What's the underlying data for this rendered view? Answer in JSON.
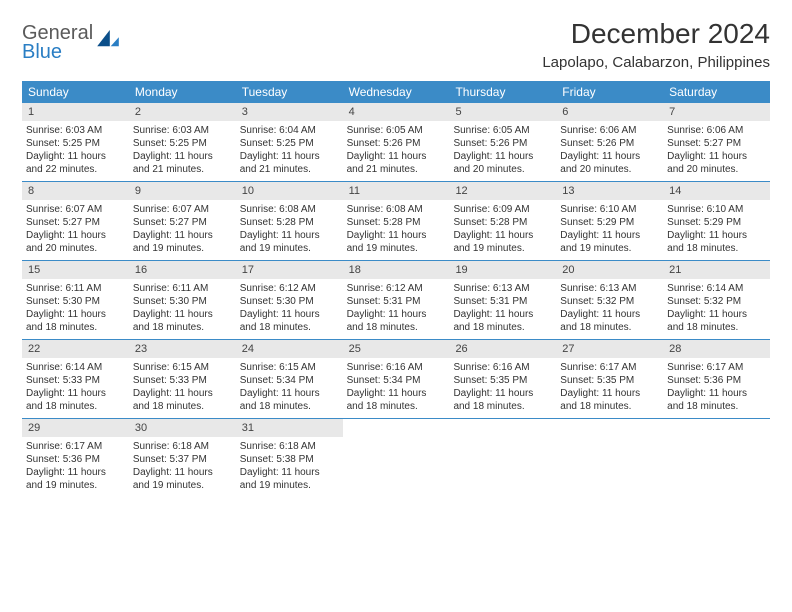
{
  "brand": {
    "line1": "General",
    "line2": "Blue"
  },
  "title": "December 2024",
  "location": "Lapolapo, Calabarzon, Philippines",
  "weekdays": [
    "Sunday",
    "Monday",
    "Tuesday",
    "Wednesday",
    "Thursday",
    "Friday",
    "Saturday"
  ],
  "colors": {
    "header_bg": "#3b8bc7",
    "header_text": "#ffffff",
    "daynum_bg": "#e8e8e8",
    "week_border": "#3b8bc7",
    "brand_gray": "#5a5a5a",
    "brand_blue": "#2a7ec4"
  },
  "weeks": [
    [
      {
        "n": "1",
        "sr": "Sunrise: 6:03 AM",
        "ss": "Sunset: 5:25 PM",
        "d1": "Daylight: 11 hours",
        "d2": "and 22 minutes."
      },
      {
        "n": "2",
        "sr": "Sunrise: 6:03 AM",
        "ss": "Sunset: 5:25 PM",
        "d1": "Daylight: 11 hours",
        "d2": "and 21 minutes."
      },
      {
        "n": "3",
        "sr": "Sunrise: 6:04 AM",
        "ss": "Sunset: 5:25 PM",
        "d1": "Daylight: 11 hours",
        "d2": "and 21 minutes."
      },
      {
        "n": "4",
        "sr": "Sunrise: 6:05 AM",
        "ss": "Sunset: 5:26 PM",
        "d1": "Daylight: 11 hours",
        "d2": "and 21 minutes."
      },
      {
        "n": "5",
        "sr": "Sunrise: 6:05 AM",
        "ss": "Sunset: 5:26 PM",
        "d1": "Daylight: 11 hours",
        "d2": "and 20 minutes."
      },
      {
        "n": "6",
        "sr": "Sunrise: 6:06 AM",
        "ss": "Sunset: 5:26 PM",
        "d1": "Daylight: 11 hours",
        "d2": "and 20 minutes."
      },
      {
        "n": "7",
        "sr": "Sunrise: 6:06 AM",
        "ss": "Sunset: 5:27 PM",
        "d1": "Daylight: 11 hours",
        "d2": "and 20 minutes."
      }
    ],
    [
      {
        "n": "8",
        "sr": "Sunrise: 6:07 AM",
        "ss": "Sunset: 5:27 PM",
        "d1": "Daylight: 11 hours",
        "d2": "and 20 minutes."
      },
      {
        "n": "9",
        "sr": "Sunrise: 6:07 AM",
        "ss": "Sunset: 5:27 PM",
        "d1": "Daylight: 11 hours",
        "d2": "and 19 minutes."
      },
      {
        "n": "10",
        "sr": "Sunrise: 6:08 AM",
        "ss": "Sunset: 5:28 PM",
        "d1": "Daylight: 11 hours",
        "d2": "and 19 minutes."
      },
      {
        "n": "11",
        "sr": "Sunrise: 6:08 AM",
        "ss": "Sunset: 5:28 PM",
        "d1": "Daylight: 11 hours",
        "d2": "and 19 minutes."
      },
      {
        "n": "12",
        "sr": "Sunrise: 6:09 AM",
        "ss": "Sunset: 5:28 PM",
        "d1": "Daylight: 11 hours",
        "d2": "and 19 minutes."
      },
      {
        "n": "13",
        "sr": "Sunrise: 6:10 AM",
        "ss": "Sunset: 5:29 PM",
        "d1": "Daylight: 11 hours",
        "d2": "and 19 minutes."
      },
      {
        "n": "14",
        "sr": "Sunrise: 6:10 AM",
        "ss": "Sunset: 5:29 PM",
        "d1": "Daylight: 11 hours",
        "d2": "and 18 minutes."
      }
    ],
    [
      {
        "n": "15",
        "sr": "Sunrise: 6:11 AM",
        "ss": "Sunset: 5:30 PM",
        "d1": "Daylight: 11 hours",
        "d2": "and 18 minutes."
      },
      {
        "n": "16",
        "sr": "Sunrise: 6:11 AM",
        "ss": "Sunset: 5:30 PM",
        "d1": "Daylight: 11 hours",
        "d2": "and 18 minutes."
      },
      {
        "n": "17",
        "sr": "Sunrise: 6:12 AM",
        "ss": "Sunset: 5:30 PM",
        "d1": "Daylight: 11 hours",
        "d2": "and 18 minutes."
      },
      {
        "n": "18",
        "sr": "Sunrise: 6:12 AM",
        "ss": "Sunset: 5:31 PM",
        "d1": "Daylight: 11 hours",
        "d2": "and 18 minutes."
      },
      {
        "n": "19",
        "sr": "Sunrise: 6:13 AM",
        "ss": "Sunset: 5:31 PM",
        "d1": "Daylight: 11 hours",
        "d2": "and 18 minutes."
      },
      {
        "n": "20",
        "sr": "Sunrise: 6:13 AM",
        "ss": "Sunset: 5:32 PM",
        "d1": "Daylight: 11 hours",
        "d2": "and 18 minutes."
      },
      {
        "n": "21",
        "sr": "Sunrise: 6:14 AM",
        "ss": "Sunset: 5:32 PM",
        "d1": "Daylight: 11 hours",
        "d2": "and 18 minutes."
      }
    ],
    [
      {
        "n": "22",
        "sr": "Sunrise: 6:14 AM",
        "ss": "Sunset: 5:33 PM",
        "d1": "Daylight: 11 hours",
        "d2": "and 18 minutes."
      },
      {
        "n": "23",
        "sr": "Sunrise: 6:15 AM",
        "ss": "Sunset: 5:33 PM",
        "d1": "Daylight: 11 hours",
        "d2": "and 18 minutes."
      },
      {
        "n": "24",
        "sr": "Sunrise: 6:15 AM",
        "ss": "Sunset: 5:34 PM",
        "d1": "Daylight: 11 hours",
        "d2": "and 18 minutes."
      },
      {
        "n": "25",
        "sr": "Sunrise: 6:16 AM",
        "ss": "Sunset: 5:34 PM",
        "d1": "Daylight: 11 hours",
        "d2": "and 18 minutes."
      },
      {
        "n": "26",
        "sr": "Sunrise: 6:16 AM",
        "ss": "Sunset: 5:35 PM",
        "d1": "Daylight: 11 hours",
        "d2": "and 18 minutes."
      },
      {
        "n": "27",
        "sr": "Sunrise: 6:17 AM",
        "ss": "Sunset: 5:35 PM",
        "d1": "Daylight: 11 hours",
        "d2": "and 18 minutes."
      },
      {
        "n": "28",
        "sr": "Sunrise: 6:17 AM",
        "ss": "Sunset: 5:36 PM",
        "d1": "Daylight: 11 hours",
        "d2": "and 18 minutes."
      }
    ],
    [
      {
        "n": "29",
        "sr": "Sunrise: 6:17 AM",
        "ss": "Sunset: 5:36 PM",
        "d1": "Daylight: 11 hours",
        "d2": "and 19 minutes."
      },
      {
        "n": "30",
        "sr": "Sunrise: 6:18 AM",
        "ss": "Sunset: 5:37 PM",
        "d1": "Daylight: 11 hours",
        "d2": "and 19 minutes."
      },
      {
        "n": "31",
        "sr": "Sunrise: 6:18 AM",
        "ss": "Sunset: 5:38 PM",
        "d1": "Daylight: 11 hours",
        "d2": "and 19 minutes."
      },
      {
        "empty": true
      },
      {
        "empty": true
      },
      {
        "empty": true
      },
      {
        "empty": true
      }
    ]
  ]
}
